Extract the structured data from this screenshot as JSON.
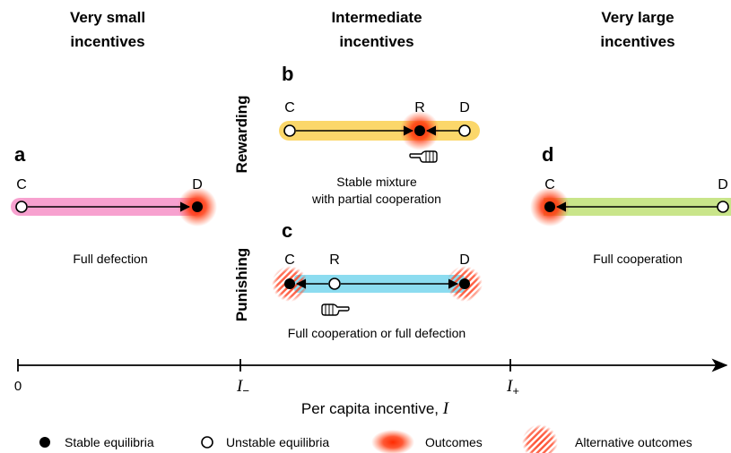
{
  "headers": {
    "left_line1": "Very small",
    "left_line2": "incentives",
    "mid_line1": "Intermediate",
    "mid_line2": "incentives",
    "right_line1": "Very large",
    "right_line2": "incentives"
  },
  "side_labels": {
    "rewarding": "Rewarding",
    "punishing": "Punishing"
  },
  "panels": {
    "a": {
      "label": "a",
      "left": "C",
      "right": "D",
      "caption": "Full defection",
      "bar_color": "#f7a1cf"
    },
    "b": {
      "label": "b",
      "left": "C",
      "mid": "R",
      "right": "D",
      "caption_line1": "Stable mixture",
      "caption_line2": "with partial cooperation",
      "bar_color": "#fbd76a"
    },
    "c": {
      "label": "c",
      "left": "C",
      "mid": "R",
      "right": "D",
      "caption": "Full cooperation or full defection",
      "bar_color": "#8cdcf0"
    },
    "d": {
      "label": "d",
      "left": "C",
      "right": "D",
      "caption": "Full cooperation",
      "bar_color": "#c9e58a"
    }
  },
  "axis": {
    "tick_zero": "0",
    "tick_minus_main": "I",
    "tick_minus_sub": "−",
    "tick_plus_main": "I",
    "tick_plus_sub": "+",
    "label_text": "Per capita incentive, ",
    "label_var": "I"
  },
  "legend": {
    "stable": "Stable equilibria",
    "unstable": "Unstable equilibria",
    "outcomes": "Outcomes",
    "alternative": "Alternative outcomes"
  },
  "colors": {
    "outcome_glow": "#ff2a00",
    "hatch": "#ff4a2a"
  },
  "icons": {
    "hand_b": "pointing-hand-icon",
    "hand_c": "pointing-hand-icon"
  }
}
